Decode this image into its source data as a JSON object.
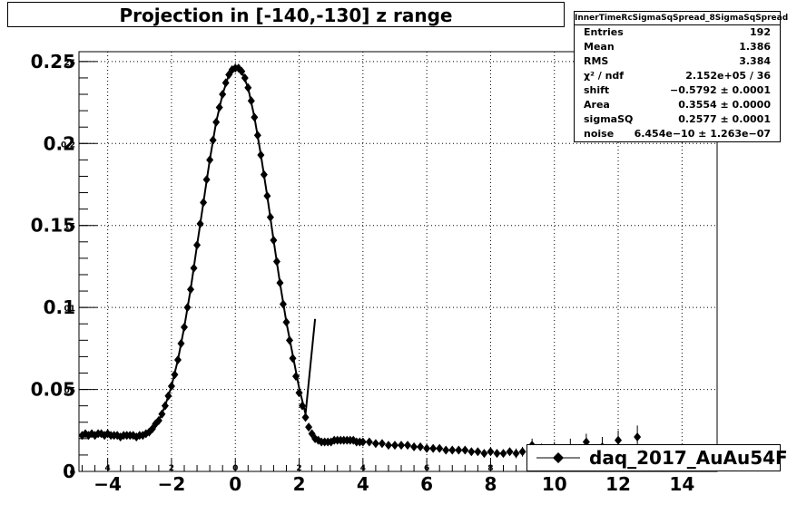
{
  "title": "Projection in [-140,-130] z range",
  "stats": {
    "title": "InnerTimeRcSigmaSqSpread_8SigmaSqSpread",
    "rows": [
      {
        "label": "Entries",
        "value": "192"
      },
      {
        "label": "Mean",
        "value": "1.386"
      },
      {
        "label": "RMS",
        "value": "3.384"
      },
      {
        "label": "χ² / ndf",
        "value": "2.152e+05 / 36"
      },
      {
        "label": "shift",
        "value": "−0.5792 ± 0.0001"
      },
      {
        "label": "Area",
        "value": "0.3554 ± 0.0000"
      },
      {
        "label": "sigmaSQ",
        "value": "0.2577 ± 0.0001"
      },
      {
        "label": "noise",
        "value": "6.454e−10 ± 1.263e−07"
      }
    ]
  },
  "legend": {
    "label": "daq_2017_AuAu54F"
  },
  "colors": {
    "marker": "#000000",
    "grid": "#000000"
  },
  "chart_data": {
    "type": "scatter",
    "xlim": [
      -4.9,
      15.1
    ],
    "ylim": [
      0,
      0.256
    ],
    "grid": true,
    "legend_position": "bottom-right",
    "x_ticks": [
      -4,
      -2,
      0,
      2,
      4,
      6,
      8,
      10,
      12,
      14
    ],
    "x_tick_labels": [
      "−4",
      "−2",
      "0",
      "2",
      "4",
      "6",
      "8",
      "10",
      "12",
      "14"
    ],
    "x_small_labels": [
      "4",
      "2",
      "0",
      "2",
      "4",
      "6",
      "8",
      "10",
      "12",
      "14"
    ],
    "y_ticks": [
      0,
      0.05,
      0.1,
      0.15,
      0.2,
      0.25
    ],
    "y_tick_labels": [
      "0",
      "0.05",
      "0.1",
      "0.15",
      "0.2",
      "0.25"
    ],
    "y_small_labels": [
      "0",
      "05",
      "01",
      "15",
      "0.2",
      "25"
    ],
    "series": [
      {
        "name": "daq_2017_AuAu54F",
        "x": [
          -4.8,
          -4.7,
          -4.6,
          -4.5,
          -4.4,
          -4.3,
          -4.2,
          -4.1,
          -4.0,
          -3.9,
          -3.8,
          -3.7,
          -3.6,
          -3.5,
          -3.4,
          -3.3,
          -3.2,
          -3.1,
          -3.0,
          -2.9,
          -2.8,
          -2.7,
          -2.6,
          -2.5,
          -2.4,
          -2.3,
          -2.2,
          -2.1,
          -2.0,
          -1.9,
          -1.8,
          -1.7,
          -1.6,
          -1.5,
          -1.4,
          -1.3,
          -1.2,
          -1.1,
          -1.0,
          -0.9,
          -0.8,
          -0.7,
          -0.6,
          -0.5,
          -0.4,
          -0.3,
          -0.2,
          -0.1,
          0.0,
          0.1,
          0.2,
          0.3,
          0.4,
          0.5,
          0.6,
          0.7,
          0.8,
          0.9,
          1.0,
          1.1,
          1.2,
          1.3,
          1.4,
          1.5,
          1.6,
          1.7,
          1.8,
          1.9,
          2.0,
          2.1,
          2.2,
          2.3,
          2.4,
          2.5,
          2.6,
          2.7,
          2.8,
          2.9,
          3.0,
          3.1,
          3.2,
          3.3,
          3.4,
          3.5,
          3.6,
          3.7,
          3.8,
          3.9,
          4.0,
          4.2,
          4.4,
          4.6,
          4.8,
          5.0,
          5.2,
          5.4,
          5.6,
          5.8,
          6.0,
          6.2,
          6.4,
          6.6,
          6.8,
          7.0,
          7.2,
          7.4,
          7.6,
          7.8,
          8.0,
          8.2,
          8.4,
          8.6,
          8.8,
          9.0,
          9.3,
          9.6,
          10.0,
          10.5,
          11.0,
          11.5,
          12.0,
          12.6
        ],
        "y": [
          0.022,
          0.023,
          0.022,
          0.023,
          0.022,
          0.023,
          0.023,
          0.022,
          0.023,
          0.022,
          0.022,
          0.022,
          0.021,
          0.022,
          0.022,
          0.022,
          0.022,
          0.021,
          0.022,
          0.022,
          0.023,
          0.024,
          0.026,
          0.029,
          0.031,
          0.035,
          0.04,
          0.046,
          0.052,
          0.059,
          0.068,
          0.078,
          0.088,
          0.1,
          0.111,
          0.124,
          0.138,
          0.151,
          0.164,
          0.178,
          0.19,
          0.202,
          0.213,
          0.222,
          0.23,
          0.237,
          0.242,
          0.245,
          0.246,
          0.246,
          0.244,
          0.24,
          0.234,
          0.226,
          0.216,
          0.205,
          0.193,
          0.181,
          0.168,
          0.155,
          0.141,
          0.128,
          0.115,
          0.102,
          0.091,
          0.08,
          0.069,
          0.058,
          0.048,
          0.04,
          0.033,
          0.027,
          0.023,
          0.02,
          0.019,
          0.018,
          0.018,
          0.018,
          0.018,
          0.019,
          0.019,
          0.019,
          0.019,
          0.019,
          0.019,
          0.019,
          0.018,
          0.018,
          0.018,
          0.018,
          0.017,
          0.017,
          0.016,
          0.016,
          0.016,
          0.016,
          0.015,
          0.015,
          0.014,
          0.014,
          0.014,
          0.013,
          0.013,
          0.013,
          0.013,
          0.012,
          0.012,
          0.011,
          0.012,
          0.011,
          0.011,
          0.012,
          0.011,
          0.012,
          0.016,
          0.013,
          0.013,
          0.014,
          0.018,
          0.015,
          0.019,
          0.021
        ],
        "y_err": [
          0,
          0,
          0,
          0,
          0,
          0,
          0,
          0,
          0,
          0,
          0,
          0,
          0,
          0,
          0,
          0,
          0,
          0,
          0,
          0,
          0,
          0,
          0,
          0,
          0,
          0,
          0,
          0,
          0,
          0,
          0,
          0,
          0,
          0,
          0,
          0,
          0,
          0,
          0,
          0,
          0,
          0,
          0,
          0,
          0,
          0,
          0,
          0,
          0,
          0,
          0,
          0,
          0,
          0,
          0,
          0,
          0,
          0,
          0,
          0,
          0,
          0,
          0,
          0,
          0,
          0,
          0,
          0,
          0,
          0,
          0,
          0,
          0,
          0,
          0,
          0,
          0,
          0,
          0,
          0,
          0,
          0,
          0,
          0,
          0,
          0,
          0,
          0,
          0,
          0,
          0,
          0,
          0,
          0,
          0,
          0,
          0,
          0,
          0,
          0,
          0,
          0,
          0,
          0,
          0,
          0,
          0,
          0,
          0,
          0.002,
          0.002,
          0.002,
          0.003,
          0.003,
          0.004,
          0.004,
          0.005,
          0.006,
          0.005,
          0.006,
          0.006,
          0.007
        ]
      }
    ],
    "fit": {
      "x": [
        -4.8,
        -4.4,
        -4.0,
        -3.6,
        -3.2,
        -2.8,
        -2.4,
        -2.2,
        -2.0,
        -1.8,
        -1.6,
        -1.4,
        -1.2,
        -1.0,
        -0.8,
        -0.6,
        -0.4,
        -0.2,
        0.0,
        0.2,
        0.4,
        0.6,
        0.8,
        1.0,
        1.2,
        1.4,
        1.6,
        1.8,
        2.0,
        2.2,
        2.5
      ],
      "y": [
        0.022,
        0.022,
        0.022,
        0.022,
        0.022,
        0.022,
        0.031,
        0.04,
        0.052,
        0.068,
        0.088,
        0.111,
        0.138,
        0.164,
        0.19,
        0.213,
        0.23,
        0.242,
        0.246,
        0.244,
        0.234,
        0.216,
        0.193,
        0.168,
        0.141,
        0.115,
        0.091,
        0.071,
        0.051,
        0.035,
        0.093
      ]
    }
  }
}
